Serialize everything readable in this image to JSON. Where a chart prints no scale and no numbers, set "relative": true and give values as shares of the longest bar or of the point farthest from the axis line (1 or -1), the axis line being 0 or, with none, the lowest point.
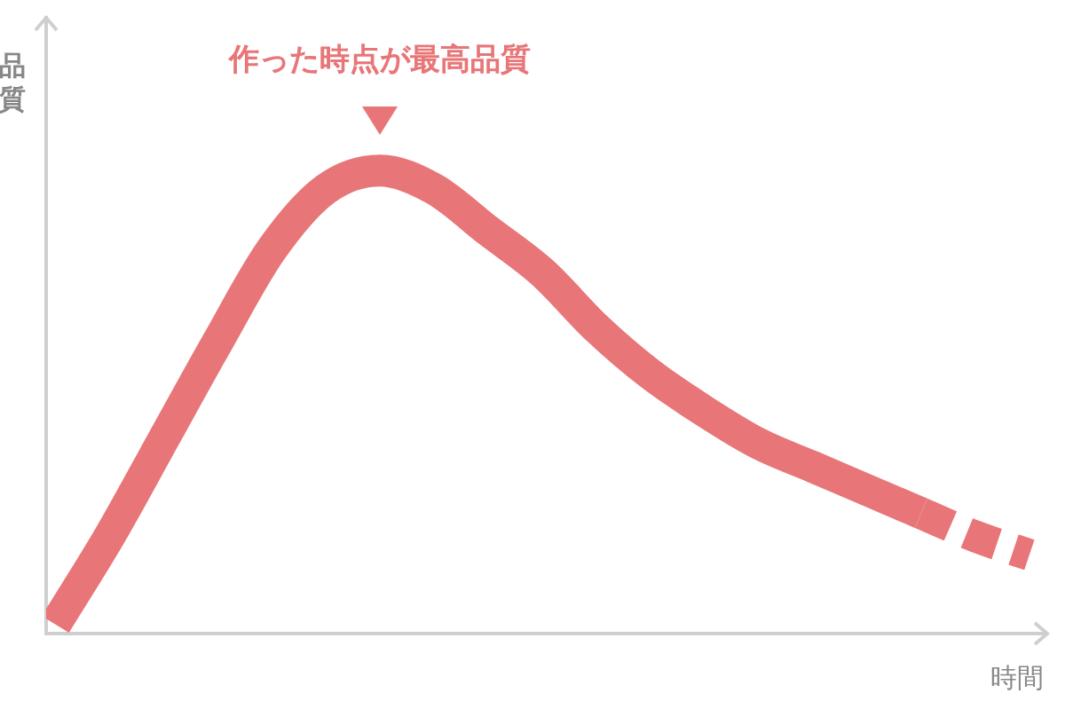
{
  "chart_data": {
    "type": "line",
    "relative": true,
    "xlabel": "時間",
    "ylabel": "品質",
    "annotations": [
      "作った時点が最高品質"
    ],
    "grid": false,
    "legend": false,
    "marker": "none",
    "categories": [
      null,
      null,
      null,
      null,
      null,
      null,
      null,
      null,
      null,
      null,
      null,
      null,
      null,
      null,
      null,
      null,
      null,
      null,
      null
    ],
    "series": [
      {
        "color": "#e87678",
        "line_style": "solid",
        "values": [
          0.02,
          0.21,
          0.42,
          0.63,
          0.83,
          0.96,
          1.0,
          0.96,
          0.87,
          0.78,
          0.66,
          0.56,
          0.48,
          0.41,
          0.36,
          0.31,
          0.26,
          null,
          null
        ]
      },
      {
        "color": "#e87678",
        "line_style": "dashed",
        "values": [
          null,
          null,
          null,
          null,
          null,
          null,
          null,
          null,
          null,
          null,
          null,
          null,
          null,
          null,
          null,
          null,
          0.26,
          0.21,
          0.17
        ]
      }
    ]
  }
}
